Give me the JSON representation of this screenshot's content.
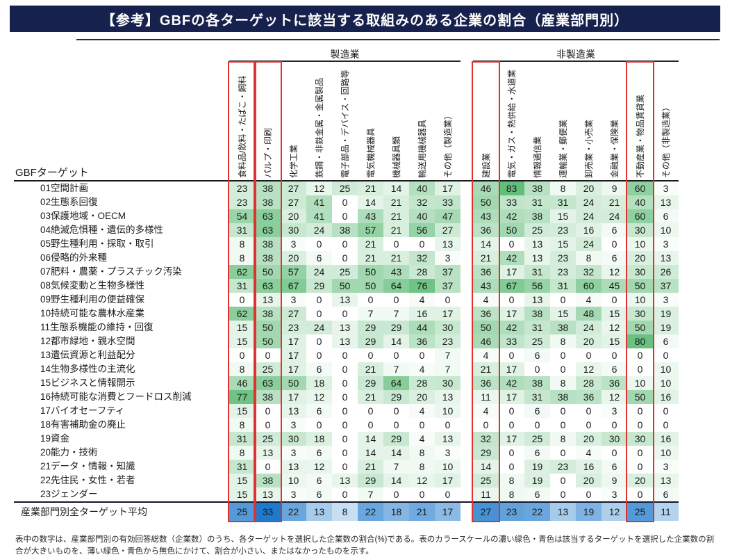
{
  "chart_data": {
    "type": "heatmap",
    "title": "【参考】GBFの各ターゲットに該当する取組みのある企業の割合（産業部門別）",
    "corner_label": "GBFターゲット",
    "column_groups": [
      {
        "label": "製造業",
        "count": 9
      },
      {
        "label": "非製造業",
        "count": 8
      }
    ],
    "columns": [
      "食料品/飲料・たばこ・飼料",
      "パルプ・印刷",
      "化学工業",
      "鉄鋼・非鉄金属・金属製品",
      "電子部品・デバイス・回路等",
      "電気機械器具",
      "機械器具類",
      "輸送用機械器具",
      "その他（製造業）",
      "建設業",
      "電気・ガス・熱供給・水道業",
      "情報通信業",
      "運輸業・郵便業",
      "卸売業・小売業",
      "金融業・保険業",
      "不動産業・物品賃貸業",
      "その他（非製造業）"
    ],
    "highlighted_columns": [
      0,
      1,
      9,
      15
    ],
    "rows": [
      {
        "label": "01空間計画",
        "values": [
          23,
          38,
          27,
          12,
          25,
          21,
          14,
          40,
          17,
          46,
          83,
          38,
          8,
          20,
          9,
          60,
          3
        ]
      },
      {
        "label": "02生態系回復",
        "values": [
          23,
          38,
          27,
          41,
          0,
          14,
          21,
          32,
          33,
          50,
          33,
          31,
          31,
          24,
          21,
          40,
          13
        ]
      },
      {
        "label": "03保護地域・OECM",
        "values": [
          54,
          63,
          20,
          41,
          0,
          43,
          21,
          40,
          47,
          43,
          42,
          38,
          15,
          24,
          24,
          60,
          6
        ]
      },
      {
        "label": "04絶滅危惧種・遺伝的多様性",
        "values": [
          31,
          63,
          30,
          24,
          38,
          57,
          21,
          56,
          27,
          36,
          50,
          25,
          23,
          16,
          6,
          30,
          10
        ]
      },
      {
        "label": "05野生種利用・採取・取引",
        "values": [
          8,
          38,
          3,
          0,
          0,
          21,
          0,
          0,
          13,
          14,
          0,
          13,
          15,
          24,
          0,
          10,
          3
        ]
      },
      {
        "label": "06侵略的外来種",
        "values": [
          8,
          38,
          20,
          6,
          0,
          21,
          21,
          32,
          3,
          21,
          42,
          13,
          23,
          8,
          6,
          20,
          13
        ]
      },
      {
        "label": "07肥料・農薬・プラスチック汚染",
        "values": [
          62,
          50,
          57,
          24,
          25,
          50,
          43,
          28,
          37,
          36,
          17,
          31,
          23,
          32,
          12,
          30,
          26
        ]
      },
      {
        "label": "08気候変動と生物多様性",
        "values": [
          31,
          63,
          67,
          29,
          50,
          50,
          64,
          76,
          37,
          43,
          67,
          56,
          31,
          60,
          45,
          50,
          37
        ]
      },
      {
        "label": "09野生種利用の便益確保",
        "values": [
          0,
          13,
          3,
          0,
          13,
          0,
          0,
          4,
          0,
          4,
          0,
          13,
          0,
          4,
          0,
          10,
          3
        ]
      },
      {
        "label": "10持続可能な農林水産業",
        "values": [
          62,
          38,
          27,
          0,
          0,
          7,
          7,
          16,
          17,
          36,
          17,
          38,
          15,
          48,
          15,
          30,
          19
        ]
      },
      {
        "label": "11生態系機能の維持・回復",
        "values": [
          15,
          50,
          23,
          24,
          13,
          29,
          29,
          44,
          30,
          50,
          42,
          31,
          38,
          24,
          12,
          50,
          19
        ]
      },
      {
        "label": "12都市緑地・親水空間",
        "values": [
          15,
          50,
          17,
          0,
          13,
          29,
          14,
          36,
          23,
          46,
          33,
          25,
          8,
          20,
          15,
          80,
          6
        ]
      },
      {
        "label": "13遺伝資源と利益配分",
        "values": [
          0,
          0,
          17,
          0,
          0,
          0,
          0,
          0,
          7,
          4,
          0,
          6,
          0,
          0,
          0,
          0,
          0
        ]
      },
      {
        "label": "14生物多様性の主流化",
        "values": [
          8,
          25,
          17,
          6,
          0,
          21,
          7,
          4,
          7,
          21,
          17,
          0,
          0,
          12,
          6,
          0,
          10
        ]
      },
      {
        "label": "15ビジネスと情報開示",
        "values": [
          46,
          63,
          50,
          18,
          0,
          29,
          64,
          28,
          30,
          36,
          42,
          38,
          8,
          28,
          36,
          10,
          10
        ]
      },
      {
        "label": "16持続可能な消費とフードロス削減",
        "values": [
          77,
          38,
          17,
          12,
          0,
          21,
          29,
          20,
          13,
          11,
          17,
          31,
          38,
          36,
          12,
          50,
          16
        ]
      },
      {
        "label": "17バイオセーフティ",
        "values": [
          15,
          0,
          13,
          6,
          0,
          0,
          0,
          4,
          10,
          4,
          0,
          6,
          0,
          0,
          3,
          0,
          0
        ]
      },
      {
        "label": "18有害補助金の廃止",
        "values": [
          8,
          0,
          3,
          0,
          0,
          0,
          0,
          0,
          0,
          0,
          0,
          0,
          0,
          0,
          0,
          0,
          0
        ]
      },
      {
        "label": "19資金",
        "values": [
          31,
          25,
          30,
          18,
          0,
          14,
          29,
          4,
          13,
          32,
          17,
          25,
          8,
          20,
          30,
          30,
          16
        ]
      },
      {
        "label": "20能力・技術",
        "values": [
          8,
          13,
          3,
          6,
          0,
          14,
          14,
          8,
          3,
          29,
          0,
          6,
          0,
          4,
          0,
          0,
          10
        ]
      },
      {
        "label": "21データ・情報・知識",
        "values": [
          31,
          0,
          13,
          12,
          0,
          21,
          7,
          8,
          10,
          14,
          0,
          19,
          23,
          16,
          6,
          0,
          3
        ]
      },
      {
        "label": "22先住民・女性・若者",
        "values": [
          15,
          38,
          10,
          6,
          13,
          29,
          14,
          12,
          17,
          25,
          8,
          19,
          0,
          20,
          9,
          20,
          13
        ]
      },
      {
        "label": "23ジェンダー",
        "values": [
          15,
          13,
          3,
          6,
          0,
          7,
          0,
          0,
          0,
          11,
          8,
          6,
          0,
          0,
          3,
          0,
          6
        ]
      }
    ],
    "average_row": {
      "label": "産業部門別全ターゲット平均",
      "values": [
        25,
        33,
        22,
        13,
        8,
        22,
        18,
        21,
        17,
        27,
        23,
        22,
        13,
        19,
        12,
        25,
        11
      ]
    },
    "scale": {
      "green_domain": [
        0,
        83
      ],
      "blue_domain": [
        0,
        33
      ]
    },
    "colors": {
      "title_bar": "#17214d",
      "title_text": "#ffffff",
      "green_max": "#63be7b",
      "blue_max": "#1e7acc",
      "highlight": "#e03131",
      "rule_line": "#2b2b2b"
    }
  },
  "footnote": "表中の数字は、産業部門別の有効回答総数（企業数）のうち、各ターゲットを選択した企業数の割合(%)である。表のカラースケールの濃い緑色・青色は該当するターゲットを選択した企業数の割合が大きいものを、薄い緑色・青色から無色にかけて、割合が小さい、またはなかったものを示す。"
}
